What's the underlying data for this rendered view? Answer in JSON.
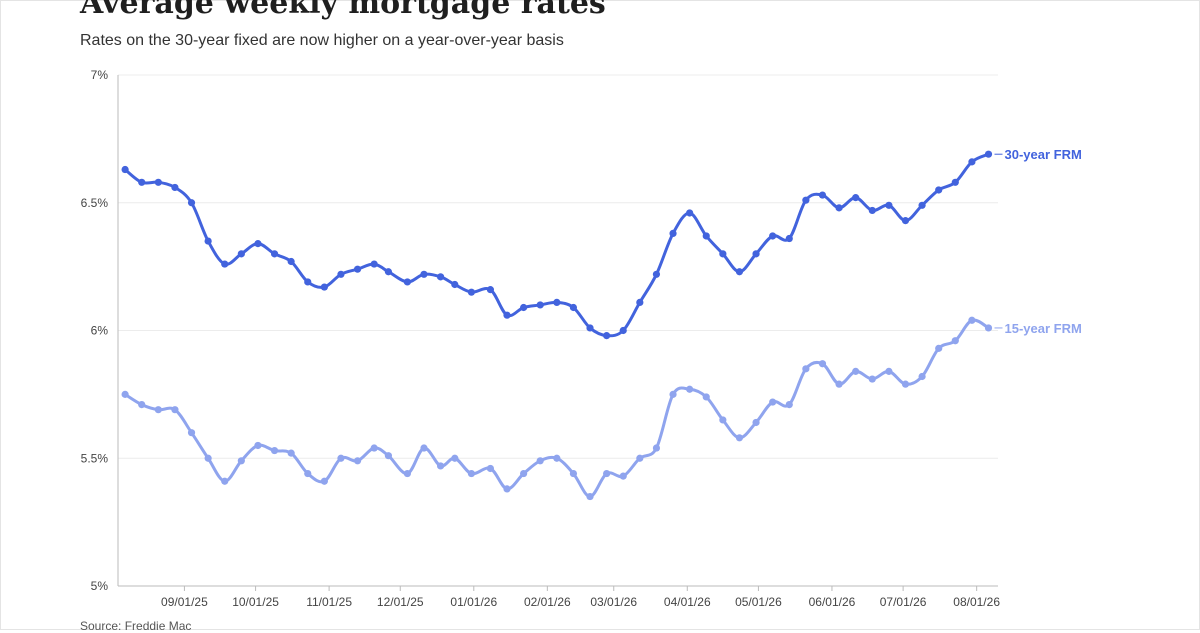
{
  "title": "Average weekly mortgage rates",
  "subtitle": "Rates on the 30-year fixed are now higher on a year-over-year basis",
  "source": "Source: Freddie Mac",
  "colors": {
    "series_30": "#4263dd",
    "series_15": "#8fa4ee",
    "grid": "#ececec",
    "axis": "#bbbbbb"
  },
  "chart_data": {
    "type": "line",
    "title": "Average weekly mortgage rates",
    "subtitle": "Rates on the 30-year fixed are now higher on a year-over-year basis",
    "x_ticks": [
      "09/01/25",
      "10/01/25",
      "11/01/25",
      "12/01/25",
      "01/01/26",
      "02/01/26",
      "03/01/26",
      "04/01/26",
      "05/01/26",
      "06/01/26",
      "07/01/26",
      "08/01/26"
    ],
    "x": [
      "08/07/25",
      "08/14/25",
      "08/21/25",
      "08/28/25",
      "09/04/25",
      "09/11/25",
      "09/18/25",
      "09/25/25",
      "10/02/25",
      "10/09/25",
      "10/16/25",
      "10/23/25",
      "10/30/25",
      "11/06/25",
      "11/13/25",
      "11/20/25",
      "11/26/25",
      "12/04/25",
      "12/11/25",
      "12/18/25",
      "12/24/25",
      "12/31/25",
      "01/08/26",
      "01/15/26",
      "01/22/26",
      "01/29/26",
      "02/05/26",
      "02/12/26",
      "02/19/26",
      "02/26/26",
      "03/05/26",
      "03/12/26",
      "03/19/26",
      "03/26/26",
      "04/02/26",
      "04/09/26",
      "04/16/26",
      "04/23/26",
      "04/30/26",
      "05/07/26",
      "05/14/26",
      "05/21/26",
      "05/28/26",
      "06/04/26",
      "06/11/26",
      "06/18/26",
      "06/25/26",
      "07/02/26",
      "07/09/26",
      "07/16/26",
      "07/23/26",
      "07/30/26",
      "08/06/26"
    ],
    "series": [
      {
        "name": "30-year FRM",
        "values": [
          6.63,
          6.58,
          6.58,
          6.56,
          6.5,
          6.35,
          6.26,
          6.3,
          6.34,
          6.3,
          6.27,
          6.19,
          6.17,
          6.22,
          6.24,
          6.26,
          6.23,
          6.19,
          6.22,
          6.21,
          6.18,
          6.15,
          6.16,
          6.06,
          6.09,
          6.1,
          6.11,
          6.09,
          6.01,
          5.98,
          6.0,
          6.11,
          6.22,
          6.38,
          6.46,
          6.37,
          6.3,
          6.23,
          6.3,
          6.37,
          6.36,
          6.51,
          6.53,
          6.48,
          6.52,
          6.47,
          6.49,
          6.43,
          6.49,
          6.55,
          6.58,
          6.66,
          6.69
        ]
      },
      {
        "name": "15-year FRM",
        "values": [
          5.75,
          5.71,
          5.69,
          5.69,
          5.6,
          5.5,
          5.41,
          5.49,
          5.55,
          5.53,
          5.52,
          5.44,
          5.41,
          5.5,
          5.49,
          5.54,
          5.51,
          5.44,
          5.54,
          5.47,
          5.5,
          5.44,
          5.46,
          5.38,
          5.44,
          5.49,
          5.5,
          5.44,
          5.35,
          5.44,
          5.43,
          5.5,
          5.54,
          5.75,
          5.77,
          5.74,
          5.65,
          5.58,
          5.64,
          5.72,
          5.71,
          5.85,
          5.87,
          5.79,
          5.84,
          5.81,
          5.84,
          5.79,
          5.82,
          5.93,
          5.96,
          6.04,
          6.01
        ]
      }
    ],
    "y_ticks": [
      "5%",
      "5.5%",
      "6%",
      "6.5%",
      "7%"
    ],
    "y_tick_values": [
      5,
      5.5,
      6,
      6.5,
      7
    ],
    "ylim": [
      5,
      7
    ],
    "grid": true,
    "legend": "direct labels at line ends"
  }
}
